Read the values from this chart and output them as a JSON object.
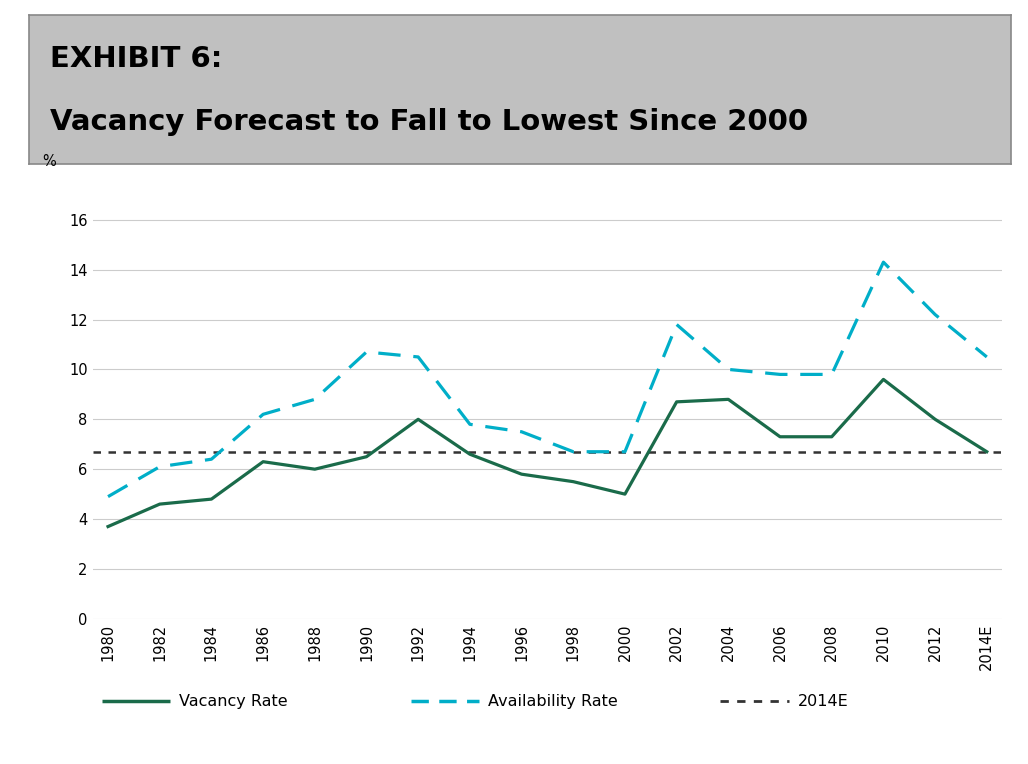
{
  "title_line1": "EXHIBIT 6:",
  "title_line2": "Vacancy Forecast to Fall to Lowest Since 2000",
  "title_bg_color": "#c0c0c0",
  "title_border_color": "#888888",
  "ylabel": "%",
  "ylim": [
    0,
    17
  ],
  "yticks": [
    0,
    2,
    4,
    6,
    8,
    10,
    12,
    14,
    16
  ],
  "x_labels": [
    "1980",
    "1982",
    "1984",
    "1986",
    "1988",
    "1990",
    "1992",
    "1994",
    "1996",
    "1998",
    "2000",
    "2002",
    "2004",
    "2006",
    "2008",
    "2010",
    "2012",
    "2014E"
  ],
  "vacancy_rate": [
    3.7,
    4.6,
    4.8,
    6.3,
    6.0,
    6.5,
    8.0,
    6.6,
    5.8,
    5.5,
    5.0,
    8.7,
    8.8,
    7.3,
    7.3,
    9.6,
    8.0,
    6.7
  ],
  "availability_rate": [
    4.9,
    6.1,
    6.4,
    8.2,
    8.8,
    10.7,
    10.5,
    7.8,
    7.5,
    6.7,
    6.7,
    11.8,
    10.0,
    9.8,
    9.8,
    14.3,
    12.2,
    10.5
  ],
  "forecast_level": 6.7,
  "vacancy_color": "#1a6b4a",
  "availability_color": "#00aec8",
  "forecast_color": "#333333",
  "background_color": "#ffffff",
  "grid_color": "#cccccc",
  "legend_vacancy": "Vacancy Rate",
  "legend_avail": "Availability Rate",
  "legend_forecast": "2014E"
}
